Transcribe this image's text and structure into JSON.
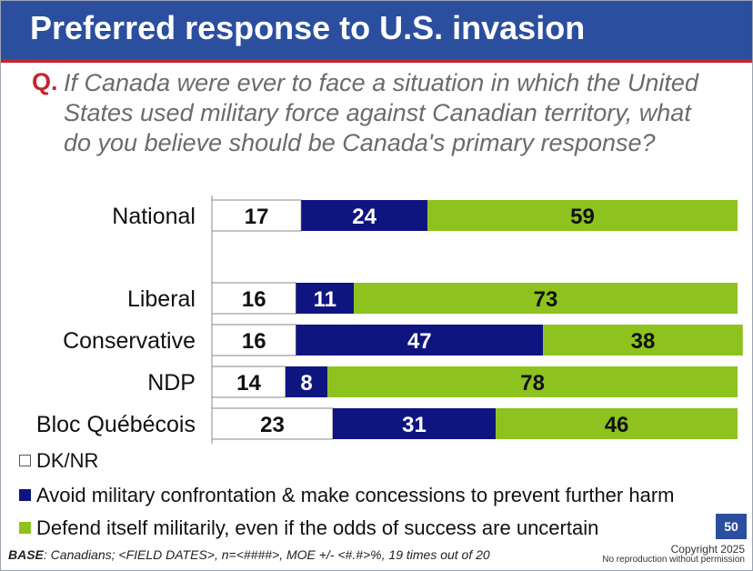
{
  "title": "Preferred response to U.S. invasion",
  "question_marker": "Q.",
  "question": "If Canada were ever to face a situation in which the United States used military force against Canadian territory, what do you believe should be Canada's primary response?",
  "base_label": "BASE",
  "base_text": ": Canadians; <FIELD DATES>, n=<####>, MOE +/- <#.#>%, 19 times out of 20",
  "page_number": "50",
  "copyright": "Copyright 2025",
  "reproduction_note": "No reproduction without permission",
  "colors": {
    "title_bar": "#2b4f9e",
    "title_rule": "#c4262e",
    "dk_nr": "#ffffff",
    "avoid": "#0f1580",
    "defend": "#8dc21f"
  },
  "chart_data": {
    "type": "bar",
    "orientation": "horizontal",
    "stacked": true,
    "xlim": [
      0,
      100
    ],
    "unit": "%",
    "categories": [
      "National",
      "Liberal",
      "Conservative",
      "NDP",
      "Bloc Québécois"
    ],
    "series": [
      {
        "name": "DK/NR",
        "values": [
          17,
          16,
          16,
          14,
          23
        ]
      },
      {
        "name": "Avoid military confrontation & make concessions to prevent further harm",
        "values": [
          24,
          11,
          47,
          8,
          31
        ]
      },
      {
        "name": "Defend itself militarily, even if the odds of success are uncertain",
        "values": [
          59,
          73,
          38,
          78,
          46
        ]
      }
    ],
    "legend_position": "bottom-left",
    "data_labels": true,
    "grid": false
  }
}
